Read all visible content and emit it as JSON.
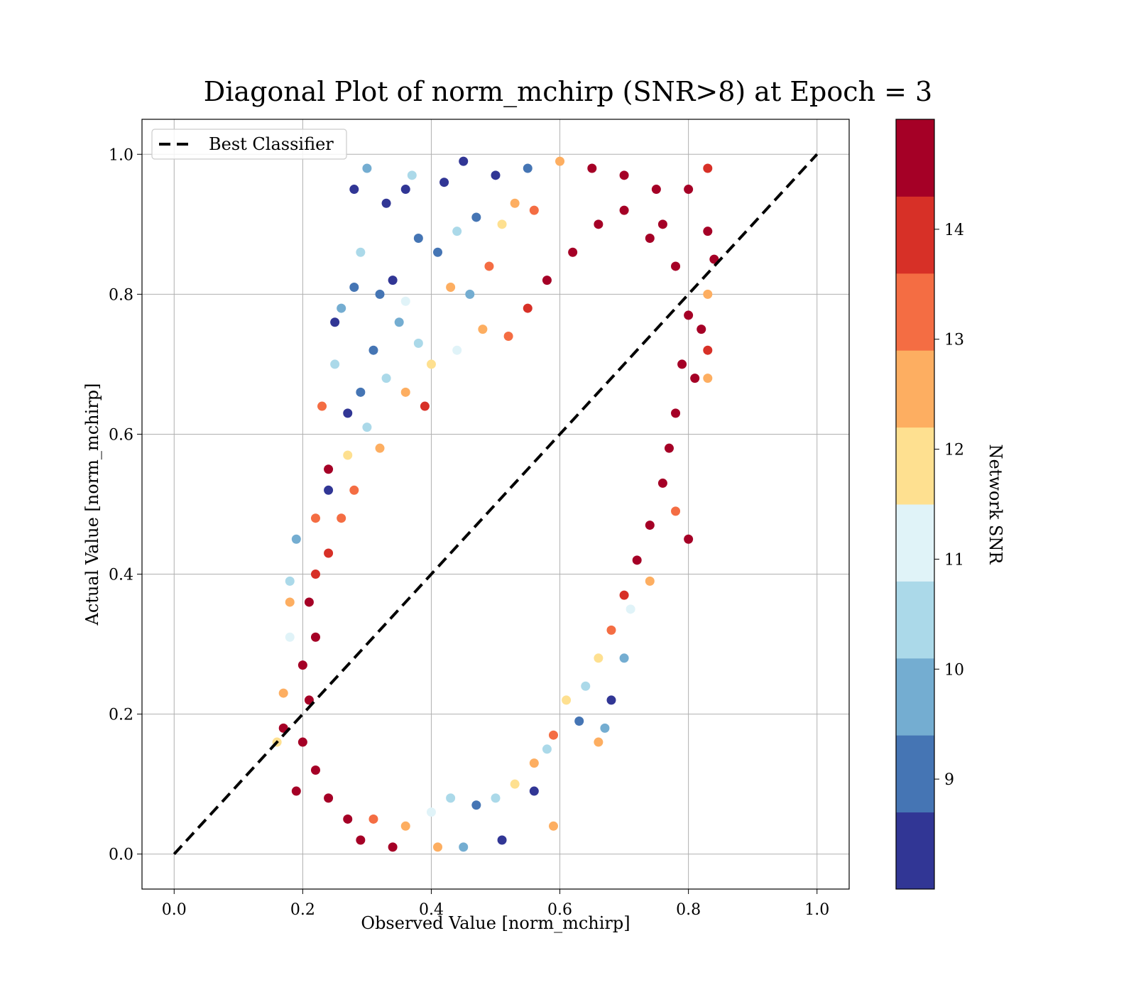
{
  "chart_data": {
    "type": "scatter",
    "title": "Diagonal Plot of norm_mchirp (SNR>8) at Epoch = 3",
    "xlabel": "Observed Value [norm_mchirp]",
    "ylabel": "Actual Value [norm_mchirp]",
    "xlim": [
      -0.05,
      1.05
    ],
    "ylim": [
      -0.05,
      1.05
    ],
    "xticks": [
      "0.0",
      "0.2",
      "0.4",
      "0.6",
      "0.8",
      "1.0"
    ],
    "yticks": [
      "0.0",
      "0.2",
      "0.4",
      "0.6",
      "0.8",
      "1.0"
    ],
    "x_tick_values": [
      0.0,
      0.2,
      0.4,
      0.6,
      0.8,
      1.0
    ],
    "y_tick_values": [
      0.0,
      0.2,
      0.4,
      0.6,
      0.8,
      1.0
    ],
    "grid": true,
    "legend": {
      "placement": "upper-left",
      "entries": [
        "Best Classifier"
      ]
    },
    "reference_line": {
      "name": "Best Classifier",
      "style": "dashed",
      "color": "#000000",
      "x": [
        0.0,
        1.0
      ],
      "y": [
        0.0,
        1.0
      ]
    },
    "colorbar": {
      "label": "Network SNR",
      "range": [
        8,
        15
      ],
      "ticks": [
        "9",
        "10",
        "11",
        "12",
        "13",
        "14"
      ],
      "tick_values": [
        9,
        10,
        11,
        12,
        13,
        14
      ],
      "boundaries": [
        8,
        8.7,
        9.4,
        10.1,
        10.8,
        11.5,
        12.2,
        12.9,
        13.6,
        14.3,
        15
      ],
      "colors": [
        "#313695",
        "#4575b4",
        "#74add1",
        "#abd9e9",
        "#e0f3f8",
        "#fee090",
        "#fdae61",
        "#f46d43",
        "#d73027",
        "#a50026"
      ]
    },
    "series": [
      {
        "color_by": "Network SNR",
        "description_note": "",
        "points": [
          [
            0.3,
            0.98,
            9.5
          ],
          [
            0.37,
            0.97,
            10.2
          ],
          [
            0.45,
            0.99,
            8.3
          ],
          [
            0.28,
            0.95,
            8.2
          ],
          [
            0.33,
            0.93,
            8.4
          ],
          [
            0.36,
            0.95,
            8.3
          ],
          [
            0.42,
            0.96,
            8.5
          ],
          [
            0.5,
            0.97,
            8.6
          ],
          [
            0.55,
            0.98,
            9.0
          ],
          [
            0.6,
            0.99,
            12.6
          ],
          [
            0.65,
            0.98,
            14.6
          ],
          [
            0.7,
            0.97,
            14.8
          ],
          [
            0.75,
            0.95,
            14.7
          ],
          [
            0.8,
            0.95,
            14.5
          ],
          [
            0.83,
            0.98,
            14.2
          ],
          [
            0.83,
            0.89,
            14.9
          ],
          [
            0.84,
            0.85,
            14.9
          ],
          [
            0.83,
            0.8,
            12.8
          ],
          [
            0.82,
            0.75,
            14.6
          ],
          [
            0.83,
            0.72,
            14.2
          ],
          [
            0.81,
            0.68,
            14.7
          ],
          [
            0.83,
            0.68,
            12.4
          ],
          [
            0.8,
            0.45,
            14.3
          ],
          [
            0.78,
            0.49,
            13.1
          ],
          [
            0.74,
            0.39,
            12.8
          ],
          [
            0.71,
            0.35,
            11.2
          ],
          [
            0.7,
            0.28,
            9.8
          ],
          [
            0.68,
            0.22,
            8.4
          ],
          [
            0.67,
            0.18,
            9.6
          ],
          [
            0.66,
            0.16,
            12.5
          ],
          [
            0.63,
            0.19,
            8.9
          ],
          [
            0.58,
            0.15,
            10.3
          ],
          [
            0.56,
            0.09,
            8.1
          ],
          [
            0.59,
            0.04,
            12.3
          ],
          [
            0.51,
            0.02,
            8.2
          ],
          [
            0.45,
            0.01,
            9.5
          ],
          [
            0.41,
            0.01,
            12.2
          ],
          [
            0.34,
            0.01,
            14.7
          ],
          [
            0.29,
            0.02,
            14.9
          ],
          [
            0.19,
            0.09,
            14.8
          ],
          [
            0.17,
            0.18,
            14.9
          ],
          [
            0.16,
            0.16,
            12.0
          ],
          [
            0.17,
            0.23,
            12.6
          ],
          [
            0.18,
            0.31,
            11.4
          ],
          [
            0.18,
            0.36,
            12.8
          ],
          [
            0.18,
            0.39,
            10.4
          ],
          [
            0.19,
            0.45,
            9.7
          ],
          [
            0.22,
            0.48,
            13.2
          ],
          [
            0.24,
            0.52,
            8.3
          ],
          [
            0.24,
            0.55,
            14.4
          ],
          [
            0.23,
            0.64,
            13.3
          ],
          [
            0.27,
            0.63,
            8.6
          ],
          [
            0.25,
            0.7,
            10.1
          ],
          [
            0.25,
            0.76,
            8.3
          ],
          [
            0.26,
            0.78,
            9.4
          ],
          [
            0.28,
            0.81,
            9.2
          ],
          [
            0.29,
            0.86,
            10.6
          ],
          [
            0.32,
            0.8,
            8.7
          ],
          [
            0.35,
            0.76,
            9.4
          ],
          [
            0.38,
            0.73,
            10.2
          ],
          [
            0.4,
            0.7,
            12.1
          ],
          [
            0.44,
            0.72,
            10.9
          ],
          [
            0.48,
            0.75,
            12.5
          ],
          [
            0.52,
            0.74,
            13.4
          ],
          [
            0.55,
            0.78,
            14.1
          ],
          [
            0.58,
            0.82,
            14.8
          ],
          [
            0.62,
            0.86,
            14.9
          ],
          [
            0.66,
            0.9,
            14.9
          ],
          [
            0.7,
            0.92,
            14.6
          ],
          [
            0.74,
            0.88,
            14.9
          ],
          [
            0.38,
            0.88,
            8.7
          ],
          [
            0.41,
            0.86,
            9.3
          ],
          [
            0.44,
            0.89,
            10.3
          ],
          [
            0.47,
            0.91,
            8.9
          ],
          [
            0.51,
            0.9,
            11.8
          ],
          [
            0.53,
            0.93,
            12.5
          ],
          [
            0.56,
            0.92,
            13.4
          ],
          [
            0.34,
            0.82,
            8.5
          ],
          [
            0.36,
            0.79,
            11.1
          ],
          [
            0.43,
            0.81,
            12.7
          ],
          [
            0.46,
            0.8,
            9.9
          ],
          [
            0.49,
            0.84,
            13.0
          ],
          [
            0.31,
            0.72,
            9.1
          ],
          [
            0.33,
            0.68,
            10.4
          ],
          [
            0.36,
            0.66,
            12.4
          ],
          [
            0.39,
            0.64,
            13.6
          ],
          [
            0.29,
            0.66,
            8.8
          ],
          [
            0.3,
            0.61,
            10.7
          ],
          [
            0.32,
            0.58,
            12.2
          ],
          [
            0.27,
            0.57,
            11.6
          ],
          [
            0.28,
            0.52,
            13.4
          ],
          [
            0.26,
            0.48,
            12.9
          ],
          [
            0.24,
            0.43,
            14.1
          ],
          [
            0.22,
            0.4,
            13.9
          ],
          [
            0.21,
            0.36,
            14.8
          ],
          [
            0.22,
            0.31,
            14.9
          ],
          [
            0.2,
            0.27,
            14.7
          ],
          [
            0.21,
            0.22,
            14.9
          ],
          [
            0.2,
            0.16,
            14.8
          ],
          [
            0.22,
            0.12,
            14.6
          ],
          [
            0.24,
            0.08,
            14.9
          ],
          [
            0.27,
            0.05,
            14.5
          ],
          [
            0.31,
            0.05,
            13.5
          ],
          [
            0.36,
            0.04,
            12.7
          ],
          [
            0.4,
            0.06,
            11.2
          ],
          [
            0.43,
            0.08,
            10.1
          ],
          [
            0.47,
            0.07,
            9.2
          ],
          [
            0.5,
            0.08,
            10.6
          ],
          [
            0.53,
            0.1,
            11.8
          ],
          [
            0.56,
            0.13,
            12.8
          ],
          [
            0.59,
            0.17,
            13.3
          ],
          [
            0.61,
            0.22,
            12.1
          ],
          [
            0.64,
            0.24,
            10.5
          ],
          [
            0.66,
            0.28,
            11.9
          ],
          [
            0.68,
            0.32,
            13.1
          ],
          [
            0.7,
            0.37,
            14.2
          ],
          [
            0.72,
            0.42,
            14.8
          ],
          [
            0.74,
            0.47,
            14.9
          ],
          [
            0.76,
            0.53,
            14.9
          ],
          [
            0.77,
            0.58,
            14.7
          ],
          [
            0.78,
            0.63,
            14.9
          ],
          [
            0.79,
            0.7,
            14.8
          ],
          [
            0.8,
            0.77,
            14.9
          ],
          [
            0.78,
            0.84,
            14.9
          ],
          [
            0.76,
            0.9,
            14.7
          ]
        ]
      }
    ]
  }
}
